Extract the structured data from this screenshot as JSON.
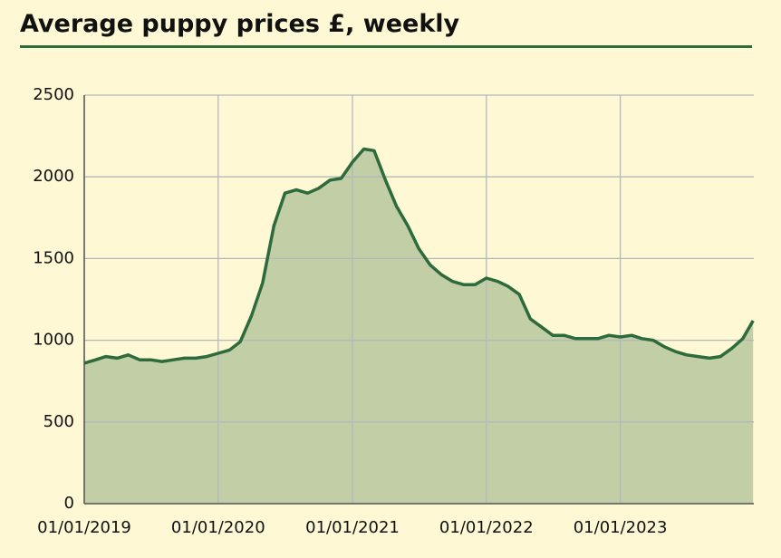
{
  "chart_data": {
    "type": "area",
    "title": "Average puppy prices £, weekly",
    "x": [
      "2019-01-01",
      "2019-02-01",
      "2019-03-01",
      "2019-04-01",
      "2019-05-01",
      "2019-06-01",
      "2019-07-01",
      "2019-08-01",
      "2019-09-01",
      "2019-10-01",
      "2019-11-01",
      "2019-12-01",
      "2020-01-01",
      "2020-02-01",
      "2020-03-01",
      "2020-04-01",
      "2020-05-01",
      "2020-06-01",
      "2020-07-01",
      "2020-08-01",
      "2020-09-01",
      "2020-10-01",
      "2020-11-01",
      "2020-12-01",
      "2021-01-01",
      "2021-02-01",
      "2021-03-01",
      "2021-04-01",
      "2021-05-01",
      "2021-06-01",
      "2021-07-01",
      "2021-08-01",
      "2021-09-01",
      "2021-10-01",
      "2021-11-01",
      "2021-12-01",
      "2022-01-01",
      "2022-02-01",
      "2022-03-01",
      "2022-04-01",
      "2022-05-01",
      "2022-06-01",
      "2022-07-01",
      "2022-08-01",
      "2022-09-01",
      "2022-10-01",
      "2022-11-01",
      "2022-12-01",
      "2023-01-01",
      "2023-02-01",
      "2023-03-01",
      "2023-04-01",
      "2023-05-01",
      "2023-06-01",
      "2023-07-01",
      "2023-08-01",
      "2023-09-01",
      "2023-10-01",
      "2023-11-01",
      "2023-12-01",
      "2023-12-29"
    ],
    "series": [
      {
        "name": "Average puppy price",
        "color": "#2d6a3c",
        "fill": "#c2cea6",
        "values": [
          860,
          880,
          900,
          890,
          910,
          880,
          880,
          870,
          880,
          890,
          890,
          900,
          920,
          940,
          990,
          1150,
          1350,
          1700,
          1900,
          1920,
          1900,
          1930,
          1980,
          1990,
          2090,
          2170,
          2160,
          1980,
          1820,
          1700,
          1560,
          1460,
          1400,
          1360,
          1340,
          1340,
          1380,
          1360,
          1330,
          1280,
          1130,
          1080,
          1030,
          1030,
          1010,
          1010,
          1010,
          1030,
          1020,
          1030,
          1010,
          1000,
          960,
          930,
          910,
          900,
          890,
          900,
          950,
          1010,
          1120
        ]
      }
    ],
    "xlim": [
      "2019-01-01",
      "2023-12-31"
    ],
    "xticks": [
      {
        "value": "2019-01-01",
        "label": "01/01/2019"
      },
      {
        "value": "2020-01-01",
        "label": "01/01/2020"
      },
      {
        "value": "2021-01-01",
        "label": "01/01/2021"
      },
      {
        "value": "2022-01-01",
        "label": "01/01/2022"
      },
      {
        "value": "2023-01-01",
        "label": "01/01/2023"
      }
    ],
    "ylim": [
      0,
      2500
    ],
    "yticks": [
      0,
      500,
      1000,
      1500,
      2000,
      2500
    ],
    "grid": true
  }
}
